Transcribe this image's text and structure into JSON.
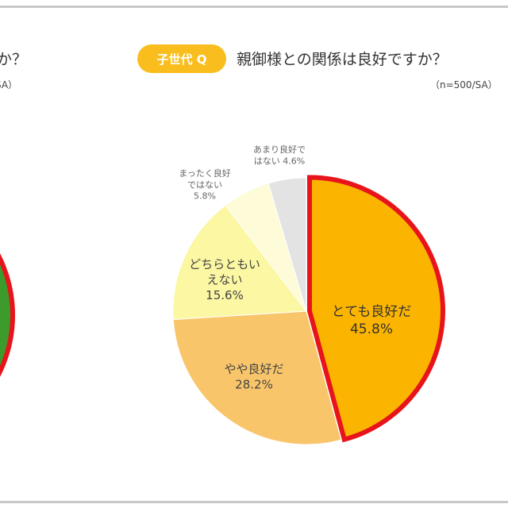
{
  "left_panel": {
    "title_fragment": "か？",
    "note_fragment": "SA）",
    "pie_color": "#3d9b2c",
    "highlight_border": "#e8141b"
  },
  "header": {
    "badge": "子世代 Q",
    "question": "親御様との関係は良好ですか？",
    "note": "（n=500/SA）",
    "badge_color": "#f9be1e"
  },
  "chart_data": {
    "type": "pie",
    "title": "親御様との関係は良好ですか？",
    "direction": "clockwise from top",
    "slices": [
      {
        "label": "とても良好だ",
        "value": 45.8,
        "value_label": "45.8%",
        "color": "#fbb400",
        "highlighted": true
      },
      {
        "label": "やや良好だ",
        "value": 28.2,
        "value_label": "28.2%",
        "color": "#f9c56b"
      },
      {
        "label": "どちらともいえない",
        "value": 15.6,
        "value_label": "15.6%",
        "color": "#fbf7a2"
      },
      {
        "label": "まったく良好ではない",
        "value": 5.8,
        "value_label": "5.8%",
        "color": "#fdfbd8"
      },
      {
        "label": "あまり良好ではない",
        "value": 4.6,
        "value_label": "4.6%",
        "color": "#e3e3e3"
      }
    ],
    "highlight_border": "#e8141b"
  }
}
